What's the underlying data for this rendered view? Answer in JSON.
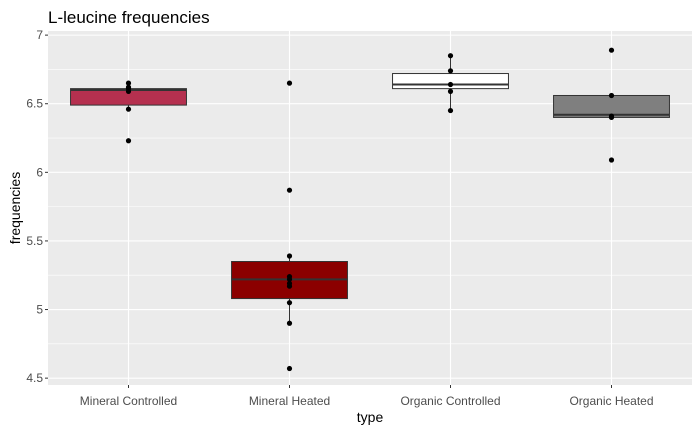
{
  "chart_data": {
    "type": "box",
    "title": "L-leucine frequencies",
    "xlabel": "type",
    "ylabel": "frequencies",
    "ylim": [
      4.45,
      7.03
    ],
    "yticks": [
      4.5,
      5,
      5.5,
      6,
      6.5,
      7
    ],
    "ytick_labels": [
      "4.5",
      "5",
      "5.5",
      "6",
      "6.5",
      "7"
    ],
    "grid": true,
    "legend": "none",
    "categories": [
      "Mineral Controlled",
      "Mineral Heated",
      "Organic Controlled",
      "Organic Heated"
    ],
    "boxes": [
      {
        "q1": 6.49,
        "median": 6.6,
        "q3": 6.61,
        "whisker_low": 6.46,
        "whisker_high": 6.65,
        "fill": "#b5304f",
        "points": [
          6.23,
          6.46,
          6.59,
          6.61,
          6.62,
          6.65
        ]
      },
      {
        "q1": 5.08,
        "median": 5.22,
        "q3": 5.35,
        "whisker_low": 4.9,
        "whisker_high": 5.39,
        "fill": "#8b0000",
        "points": [
          4.57,
          4.9,
          5.05,
          5.17,
          5.19,
          5.22,
          5.24,
          5.39,
          5.87,
          6.65
        ]
      },
      {
        "q1": 6.61,
        "median": 6.64,
        "q3": 6.72,
        "whisker_low": 6.45,
        "whisker_high": 6.85,
        "fill": "#ffffff",
        "points": [
          6.45,
          6.59,
          6.64,
          6.74,
          6.85
        ]
      },
      {
        "q1": 6.4,
        "median": 6.42,
        "q3": 6.56,
        "whisker_low": 6.4,
        "whisker_high": 6.56,
        "fill": "#7f7f7f",
        "points": [
          6.09,
          6.4,
          6.41,
          6.56,
          6.89
        ]
      }
    ],
    "colors": {
      "panel": "#ebebeb",
      "grid": "#ffffff",
      "box_line": "#333333",
      "point": "#000000"
    }
  }
}
